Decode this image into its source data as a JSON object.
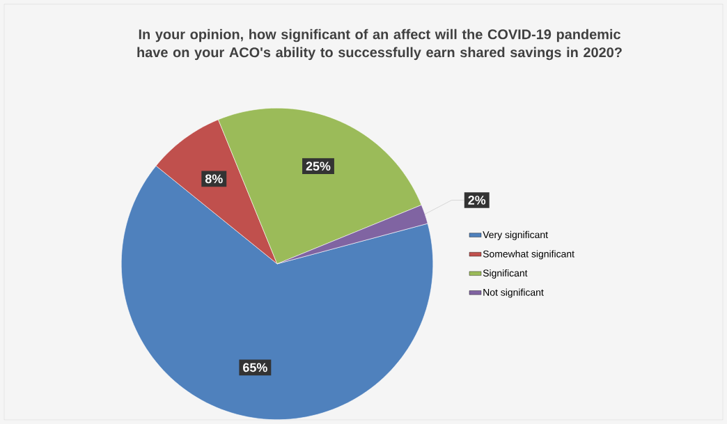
{
  "chart_data": {
    "type": "pie",
    "title": "In your opinion, how significant of an affect will the COVID-19 pandemic have on your ACO's ability to successfully earn shared savings in 2020?",
    "categories": [
      "Very significant",
      "Somewhat significant",
      "Significant",
      "Not significant"
    ],
    "values": [
      65,
      8,
      25,
      2
    ],
    "colors": [
      "#4f81bd",
      "#c0504d",
      "#9bbb59",
      "#8064a2"
    ],
    "value_labels": [
      "65%",
      "8%",
      "25%",
      "2%"
    ],
    "legend": "right"
  }
}
